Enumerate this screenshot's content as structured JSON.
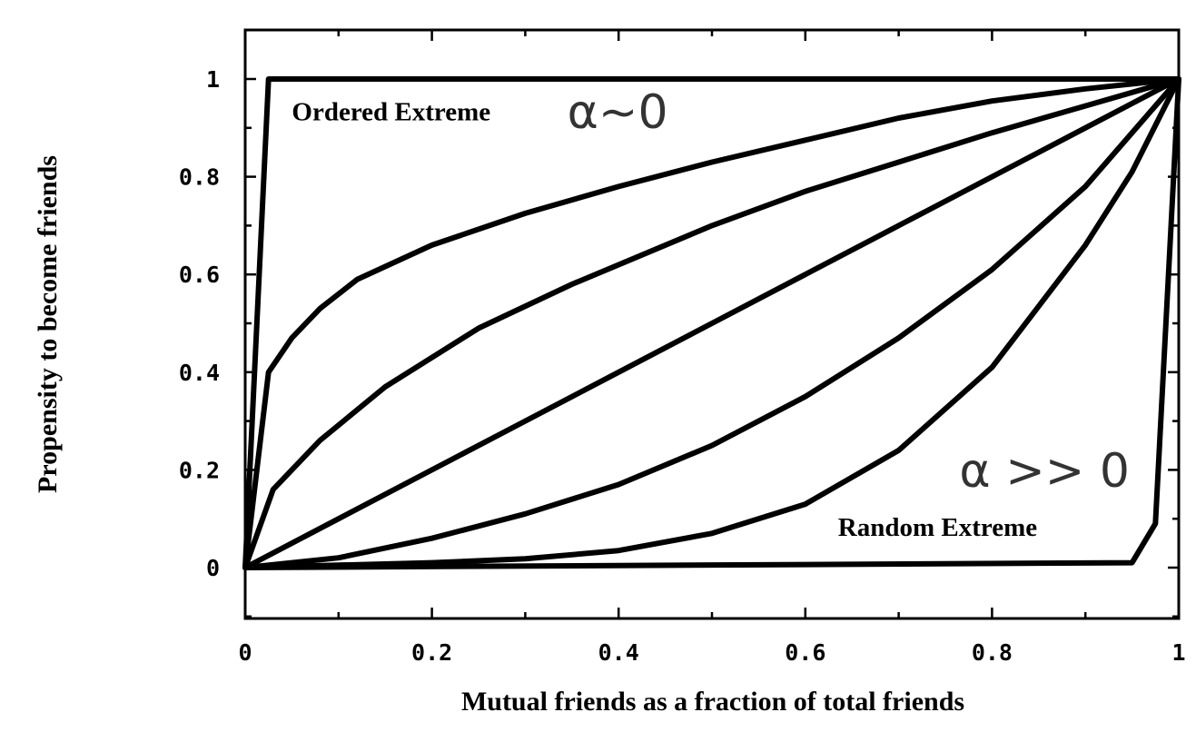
{
  "chart_data": {
    "type": "line",
    "title": "",
    "xlabel": "Mutual friends as a fraction of total friends",
    "ylabel": "Propensity to become friends",
    "xlim": [
      0,
      1
    ],
    "ylim": [
      -0.1,
      1.1
    ],
    "grid": false,
    "x_ticks": [
      "0",
      "0.2",
      "0.4",
      "0.6",
      "0.8",
      "1"
    ],
    "y_ticks": [
      "0",
      "0.2",
      "0.4",
      "0.6",
      "0.8",
      "1"
    ],
    "series": [
      {
        "x": [
          0,
          0.025,
          1
        ],
        "y": [
          0,
          1,
          1
        ]
      },
      {
        "x": [
          0,
          0.025,
          0.05,
          0.08,
          0.12,
          0.2,
          0.3,
          0.4,
          0.5,
          0.6,
          0.7,
          0.8,
          0.9,
          1
        ],
        "y": [
          0,
          0.4,
          0.47,
          0.53,
          0.59,
          0.66,
          0.725,
          0.78,
          0.83,
          0.875,
          0.92,
          0.955,
          0.98,
          1
        ]
      },
      {
        "x": [
          0,
          0.03,
          0.08,
          0.15,
          0.25,
          0.35,
          0.5,
          0.6,
          0.7,
          0.8,
          0.9,
          1
        ],
        "y": [
          0,
          0.16,
          0.26,
          0.37,
          0.49,
          0.58,
          0.7,
          0.77,
          0.83,
          0.89,
          0.945,
          1
        ]
      },
      {
        "x": [
          0,
          0.1,
          0.2,
          0.3,
          0.4,
          0.5,
          0.6,
          0.7,
          0.8,
          0.9,
          1
        ],
        "y": [
          0,
          0.1,
          0.2,
          0.3,
          0.4,
          0.5,
          0.6,
          0.7,
          0.8,
          0.9,
          1
        ]
      },
      {
        "x": [
          0,
          0.1,
          0.2,
          0.3,
          0.4,
          0.5,
          0.6,
          0.7,
          0.8,
          0.9,
          1
        ],
        "y": [
          0,
          0.02,
          0.06,
          0.11,
          0.17,
          0.25,
          0.35,
          0.47,
          0.61,
          0.78,
          1
        ]
      },
      {
        "x": [
          0,
          0.1,
          0.2,
          0.3,
          0.4,
          0.5,
          0.6,
          0.7,
          0.8,
          0.9,
          0.95,
          1
        ],
        "y": [
          0,
          0.005,
          0.01,
          0.018,
          0.035,
          0.07,
          0.13,
          0.24,
          0.41,
          0.66,
          0.81,
          1
        ]
      },
      {
        "x": [
          0,
          0.95,
          0.975,
          1
        ],
        "y": [
          0,
          0.01,
          0.09,
          1
        ]
      }
    ],
    "annotations": [
      {
        "text": "Ordered Extreme",
        "x": 0.05,
        "y": 0.915,
        "style": "serif"
      },
      {
        "text": "α~0",
        "x": 0.345,
        "y": 0.9,
        "style": "alpha"
      },
      {
        "text": "α >> 0",
        "x": 0.765,
        "y": 0.165,
        "style": "alpha"
      },
      {
        "text": "Random Extreme",
        "x": 0.635,
        "y": 0.065,
        "style": "serif"
      }
    ]
  }
}
